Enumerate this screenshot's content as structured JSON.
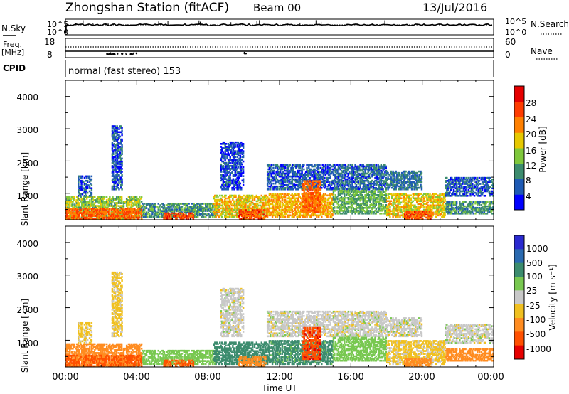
{
  "header": {
    "station": "Zhongshan Station (fitACF)",
    "beam": "Beam 00",
    "date": "13/Jul/2016"
  },
  "noise_panel": {
    "left_label": "N.Sky",
    "right_label": "N.Search",
    "left_ticks": [
      "10^5",
      "10^0"
    ],
    "right_ticks": [
      "10^5",
      "10^0"
    ]
  },
  "freq_panel": {
    "left_label_1": "Freq.",
    "left_label_2": "[MHz]",
    "right_label": "Nave",
    "left_ticks": [
      "18",
      "8"
    ],
    "right_ticks": [
      "60",
      "0"
    ]
  },
  "cpid_panel": {
    "label": "CPID",
    "program": "normal (fast stereo) 153"
  },
  "xaxis": {
    "ticks": [
      "00:00",
      "04:00",
      "08:00",
      "12:00",
      "16:00",
      "20:00",
      "00:00"
    ],
    "label": "Time UT"
  },
  "power_panel": {
    "ylabel": "Slant Range [km]",
    "yticks": [
      "1000",
      "2000",
      "3000",
      "4000"
    ],
    "colorbar_label": "Power [dB]",
    "colorbar_ticks": [
      "4",
      "8",
      "12",
      "16",
      "20",
      "24",
      "28"
    ],
    "colors": [
      "#0000ff",
      "#1e5ab4",
      "#3c8c6e",
      "#7fc83c",
      "#e6c800",
      "#ff8000",
      "#ff3c00",
      "#e60000"
    ]
  },
  "velocity_panel": {
    "ylabel": "Slant Range [km]",
    "yticks": [
      "1000",
      "2000",
      "3000",
      "4000"
    ],
    "colorbar_label": "Velocity [m s⁻¹]",
    "colorbar_ticks": [
      "1000",
      "500",
      "100",
      "25",
      "-25",
      "-100",
      "-500",
      "-1000"
    ],
    "colors": [
      "#2a2ad0",
      "#2a6ab0",
      "#3c8c6e",
      "#78c850",
      "#c8c8c8",
      "#f0c020",
      "#ff8c20",
      "#ff5000",
      "#e60000"
    ]
  },
  "chart_data": {
    "type": "heatmap",
    "x_range": [
      "00:00",
      "00:00"
    ],
    "ylim": [
      180,
      4500
    ],
    "power_colorbar_range_dB": [
      0,
      30
    ],
    "velocity_colorbar_range_ms": [
      -1000,
      1000
    ],
    "echo_regions": [
      {
        "t_start": 0.0,
        "t_end": 4.3,
        "range_lo": 180,
        "range_hi": 900,
        "power_dB": 14,
        "velocity": -300
      },
      {
        "t_start": 0.0,
        "t_end": 4.3,
        "range_lo": 180,
        "range_hi": 550,
        "power_dB": 24,
        "velocity": -600
      },
      {
        "t_start": 0.7,
        "t_end": 1.5,
        "range_lo": 900,
        "range_hi": 1550,
        "power_dB": 6,
        "velocity": -40
      },
      {
        "t_start": 2.6,
        "t_end": 3.2,
        "range_lo": 1100,
        "range_hi": 3100,
        "power_dB": 6,
        "velocity": -40
      },
      {
        "t_start": 4.3,
        "t_end": 8.5,
        "range_lo": 250,
        "range_hi": 700,
        "power_dB": 10,
        "velocity": 60
      },
      {
        "t_start": 5.5,
        "t_end": 7.2,
        "range_lo": 180,
        "range_hi": 400,
        "power_dB": 26,
        "velocity": -600
      },
      {
        "t_start": 8.7,
        "t_end": 10.0,
        "range_lo": 1100,
        "range_hi": 2600,
        "power_dB": 5,
        "velocity": 0
      },
      {
        "t_start": 8.3,
        "t_end": 11.3,
        "range_lo": 250,
        "range_hi": 950,
        "power_dB": 18,
        "velocity": 250
      },
      {
        "t_start": 9.7,
        "t_end": 11.3,
        "range_lo": 180,
        "range_hi": 500,
        "power_dB": 25,
        "velocity": -300
      },
      {
        "t_start": 11.3,
        "t_end": 15.0,
        "range_lo": 1100,
        "range_hi": 1900,
        "power_dB": 6,
        "velocity": 0
      },
      {
        "t_start": 11.3,
        "t_end": 15.0,
        "range_lo": 250,
        "range_hi": 1000,
        "power_dB": 20,
        "velocity": 150
      },
      {
        "t_start": 13.3,
        "t_end": 14.3,
        "range_lo": 400,
        "range_hi": 1400,
        "power_dB": 24,
        "velocity": -800
      },
      {
        "t_start": 15.0,
        "t_end": 18.0,
        "range_lo": 1100,
        "range_hi": 1900,
        "power_dB": 7,
        "velocity": 0
      },
      {
        "t_start": 15.0,
        "t_end": 18.0,
        "range_lo": 350,
        "range_hi": 1100,
        "power_dB": 12,
        "velocity": 60
      },
      {
        "t_start": 18.0,
        "t_end": 20.0,
        "range_lo": 1100,
        "range_hi": 1700,
        "power_dB": 8,
        "velocity": 0
      },
      {
        "t_start": 18.0,
        "t_end": 21.3,
        "range_lo": 250,
        "range_hi": 1000,
        "power_dB": 18,
        "velocity": -40
      },
      {
        "t_start": 19.0,
        "t_end": 20.5,
        "range_lo": 180,
        "range_hi": 450,
        "power_dB": 25,
        "velocity": -300
      },
      {
        "t_start": 21.3,
        "t_end": 24.0,
        "range_lo": 900,
        "range_hi": 1500,
        "power_dB": 6,
        "velocity": 0
      },
      {
        "t_start": 21.3,
        "t_end": 24.0,
        "range_lo": 350,
        "range_hi": 750,
        "power_dB": 10,
        "velocity": -200
      }
    ]
  }
}
